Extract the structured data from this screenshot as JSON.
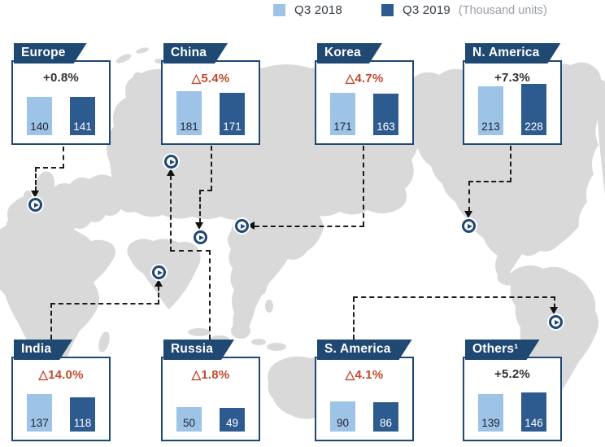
{
  "legend": {
    "items": [
      {
        "label": "Q3 2018",
        "color": "#9dc3e6"
      },
      {
        "label": "Q3 2019",
        "color": "#2e5b8f"
      }
    ],
    "note": "(Thousand units)"
  },
  "chart_data": {
    "type": "bar",
    "unit_note": "(Thousand units)",
    "series": [
      "Q3 2018",
      "Q3 2019"
    ],
    "colors": {
      "q3_2018": "#9dc3e6",
      "q3_2019": "#2e5b8f",
      "banner": "#1f4872",
      "decrease": "#c14a2e",
      "increase": "#333333",
      "map": "#d9d9d9"
    },
    "regions": [
      {
        "name": "Europe",
        "change_label": "+0.8%",
        "change_direction": "increase",
        "values": [
          140,
          141
        ]
      },
      {
        "name": "China",
        "change_label": "△5.4%",
        "change_direction": "decrease",
        "values": [
          181,
          171
        ]
      },
      {
        "name": "Korea",
        "change_label": "△4.7%",
        "change_direction": "decrease",
        "values": [
          171,
          163
        ]
      },
      {
        "name": "N. America",
        "change_label": "+7.3%",
        "change_direction": "increase",
        "values": [
          213,
          228
        ]
      },
      {
        "name": "India",
        "change_label": "△14.0%",
        "change_direction": "decrease",
        "values": [
          137,
          118
        ]
      },
      {
        "name": "Russia",
        "change_label": "△1.8%",
        "change_direction": "decrease",
        "values": [
          50,
          49
        ]
      },
      {
        "name": "S. America",
        "change_label": "△4.1%",
        "change_direction": "decrease",
        "values": [
          90,
          86
        ]
      },
      {
        "name": "Others¹",
        "change_label": "+5.2%",
        "change_direction": "increase",
        "values": [
          139,
          146
        ]
      }
    ]
  }
}
